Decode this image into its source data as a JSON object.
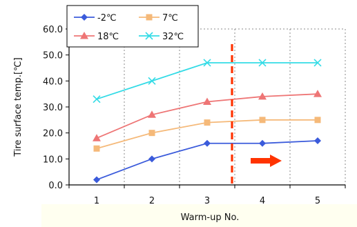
{
  "chart_data": {
    "type": "line",
    "xlabel": "Warm-up No.",
    "ylabel": "Tire surface temp.[℃]",
    "categories": [
      "1",
      "2",
      "3",
      "4",
      "5"
    ],
    "ylim": [
      0,
      60
    ],
    "yticks": [
      "0.0",
      "10.0",
      "20.0",
      "30.0",
      "40.0",
      "50.0",
      "60.0"
    ],
    "grid": "vertical dashed",
    "legend": "top-left",
    "series": [
      {
        "name": "-2℃",
        "color": "#3b5bdb",
        "marker": "diamond",
        "values": [
          2,
          10,
          16,
          16,
          17
        ]
      },
      {
        "name": "7℃",
        "color": "#f5b979",
        "marker": "square",
        "values": [
          14,
          20,
          24,
          25,
          25
        ]
      },
      {
        "name": "18℃",
        "color": "#ee7575",
        "marker": "triangle",
        "values": [
          18,
          27,
          32,
          34,
          35
        ]
      },
      {
        "name": "32℃",
        "color": "#33dbe6",
        "marker": "x",
        "values": [
          33,
          40,
          47,
          47,
          47
        ]
      }
    ],
    "annotations": {
      "divider": {
        "after_category": "3",
        "color": "#ff3300"
      },
      "arrow": {
        "direction": "right",
        "color": "#ff3300"
      }
    },
    "xlabel_background": "#ffffe8"
  }
}
